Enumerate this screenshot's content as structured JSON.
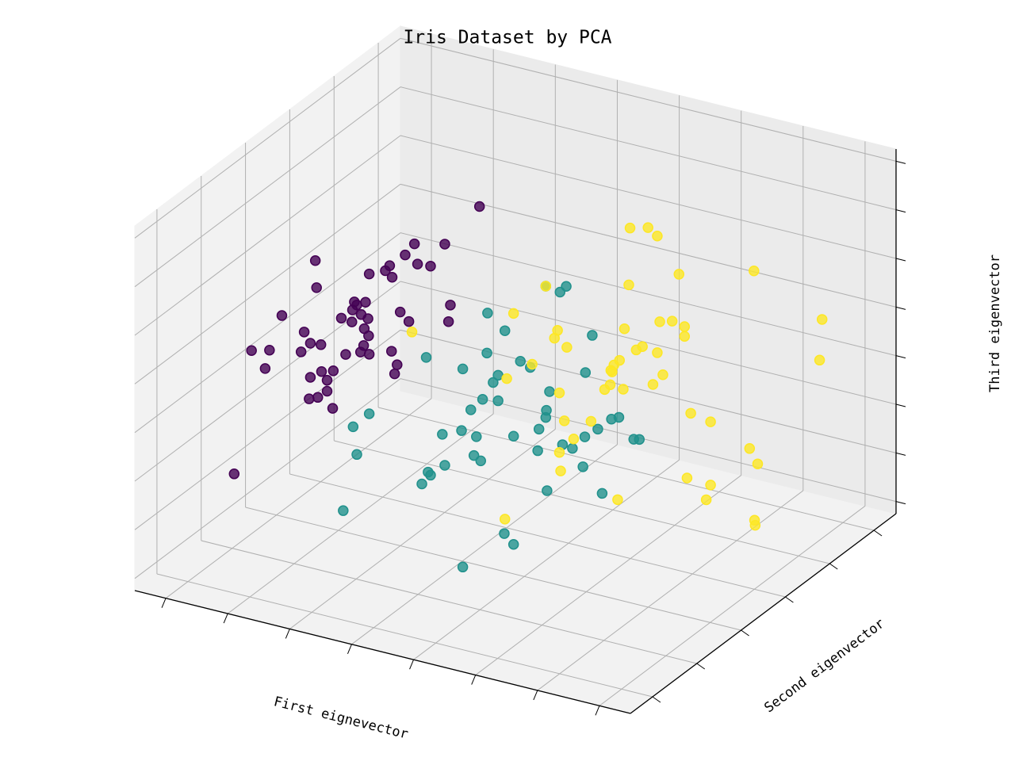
{
  "chart_data": {
    "type": "scatter3d",
    "title": "Iris Dataset by PCA",
    "x_label": "First eignevector",
    "y_label": "Second eigenvector",
    "z_label": "Third eigenvector",
    "xlim": [
      -4,
      4
    ],
    "ylim": [
      -1.5,
      1.5
    ],
    "zlim": [
      -1.5,
      1.5
    ],
    "xticks": [
      -3.5,
      -2.5,
      -1.5,
      -0.5,
      0.5,
      1.5,
      2.5,
      3.5
    ],
    "yticks": [
      -1.25,
      -0.75,
      -0.25,
      0.25,
      0.75,
      1.25
    ],
    "zticks": [
      -1.4,
      -1,
      -0.6,
      -0.2,
      0.2,
      0.6,
      1,
      1.4
    ],
    "grid": true,
    "series": [
      {
        "color": "#440154",
        "x": [
          -0.58,
          -1.63,
          -1.14,
          -3.23,
          -1.78,
          -2.03,
          -1.58,
          -1.37,
          -2.1,
          -2.36,
          -1.99,
          -3.21,
          -3.77,
          -2.42,
          -2.6,
          -1.05,
          -1.86,
          -2.63,
          -2.56,
          -2.81,
          -2.49,
          -2.38,
          -1.72,
          -1.08,
          -2.64,
          -3.41,
          -2.44,
          -2.37,
          -3.31,
          -3.14,
          -2.45,
          -4.26,
          -3.97,
          -3.46,
          -2.74,
          -2.0,
          -2.36,
          -1.91,
          -4.04,
          -3.13,
          -2.94,
          -1.95,
          -3.04,
          -3.31,
          -3.04,
          -3.19,
          -3.33,
          -2.95,
          -4.54,
          -2.5
        ],
        "y": [
          0,
          0,
          0,
          0,
          0,
          0,
          0,
          0,
          0,
          0,
          0,
          0,
          0,
          0,
          0,
          0,
          0,
          0,
          0,
          0,
          0,
          0,
          0,
          0,
          0,
          0,
          0,
          0,
          0,
          0,
          0,
          0,
          0,
          0,
          0,
          0,
          0,
          0,
          0,
          0,
          0,
          0,
          0,
          0,
          0,
          0,
          0,
          0,
          0,
          0
        ],
        "z": [
          1.27,
          0.83,
          0.89,
          0.49,
          0.72,
          0.6,
          0.67,
          0.68,
          0.55,
          0.49,
          0.51,
          0.27,
          -0.03,
          0.25,
          0.23,
          0.4,
          0.24,
          0.16,
          0.21,
          0.07,
          0.14,
          0.12,
          0.18,
          0.26,
          0.06,
          -0.12,
          0.03,
          -0.02,
          -0.2,
          -0.19,
          -0.11,
          -0.38,
          -0.34,
          -0.29,
          -0.22,
          -0.1,
          -0.17,
          -0.2,
          -0.5,
          -0.41,
          -0.38,
          -0.28,
          -0.47,
          -0.48,
          -0.56,
          -0.63,
          -0.66,
          -0.69,
          -1.43,
          -0.17
        ]
      },
      {
        "color": "#21918c",
        "x": [
          0.49,
          0.82,
          0.72,
          -0.45,
          -0.17,
          1.24,
          -0.46,
          -1.44,
          0.08,
          -0.85,
          -0.28,
          1.13,
          -0.36,
          0.24,
          0.55,
          -0.53,
          -0.28,
          -0.72,
          0.5,
          -2.36,
          0.49,
          1.55,
          1.67,
          -1.18,
          -0.87,
          -0.63,
          -0.03,
          0.38,
          1.12,
          1.33,
          1.91,
          2.0,
          -2.62,
          0.92,
          0.76,
          0.36,
          -0.56,
          -0.67,
          -1.41,
          -1.14,
          -1.51,
          -2.56,
          -1.37,
          1.09,
          0.51,
          1.4,
          -2.78,
          -0.18,
          -0.03,
          -0.85
        ],
        "y": [
          0,
          0,
          0,
          0,
          0,
          0,
          0,
          0,
          0,
          0,
          0,
          0,
          0,
          0,
          0,
          0,
          0,
          0,
          0,
          0,
          0,
          0,
          0,
          0,
          0,
          0,
          0,
          0,
          0,
          0,
          0,
          0,
          0,
          0,
          0,
          0,
          0,
          0,
          0,
          0,
          0,
          0,
          0,
          0,
          0,
          0,
          0,
          0,
          0,
          0
        ],
        "z": [
          0.75,
          0.79,
          0.73,
          0.41,
          0.3,
          0.44,
          0.08,
          -0.08,
          0.08,
          -0.1,
          -0.08,
          0.12,
          -0.15,
          0.05,
          -0.11,
          -0.31,
          -0.29,
          -0.42,
          -0.27,
          -0.66,
          -0.33,
          -0.21,
          -0.18,
          -0.68,
          -0.61,
          -0.63,
          -0.55,
          -0.44,
          -0.41,
          -0.32,
          -0.33,
          -0.32,
          -0.8,
          -0.53,
          -0.52,
          -0.62,
          -0.82,
          -0.79,
          -1.02,
          -0.93,
          -1.13,
          -1.02,
          -1.04,
          -0.66,
          -0.93,
          -0.84,
          -1.51,
          -1.37,
          -1.44,
          -1.73
        ]
      },
      {
        "color": "#fde725",
        "x": [
          1.85,
          2.14,
          2.29,
          2.64,
          3.85,
          0.49,
          1.83,
          -0.03,
          -1.67,
          0.68,
          1.76,
          2.33,
          2.53,
          2.73,
          0.63,
          0.83,
          1.95,
          2.05,
          2.73,
          2.29,
          1.68,
          1.59,
          0.27,
          4.95,
          4.91,
          1.56,
          2.38,
          -0.14,
          1.53,
          1.44,
          1.74,
          2.22,
          0.71,
          0.79,
          1.22,
          2.83,
          3.15,
          0.94,
          0.71,
          3.78,
          3.91,
          0.73,
          2.77,
          3.15,
          3.08,
          1.65,
          -0.17,
          3.86,
          3.87,
          1.54
        ],
        "y": [
          0,
          0,
          0,
          0,
          0,
          0,
          0,
          0,
          0,
          0,
          0,
          0,
          0,
          0,
          0,
          0,
          0,
          0,
          0,
          0,
          0,
          0,
          0,
          0,
          0,
          0,
          0,
          0,
          0,
          0,
          0,
          0,
          0,
          0,
          0,
          0,
          0,
          0,
          0,
          0,
          0,
          0,
          0,
          0,
          0,
          0,
          0,
          0,
          0,
          0
        ],
        "z": [
          1.4,
          1.44,
          1.39,
          1.12,
          1.3,
          0.75,
          0.93,
          0.46,
          0.1,
          0.41,
          0.56,
          0.69,
          0.72,
          0.7,
          0.34,
          0.29,
          0.41,
          0.45,
          0.62,
          0.43,
          0.29,
          0.24,
          0.08,
          1.04,
          0.7,
          0.18,
          0.26,
          -0.09,
          0.07,
          0.02,
          0.06,
          0.16,
          -0.1,
          -0.32,
          -0.27,
          0.0,
          -0.03,
          -0.45,
          -0.59,
          -0.17,
          -0.28,
          -0.74,
          -0.54,
          -0.55,
          -0.68,
          -0.86,
          -1.25,
          -0.75,
          -0.79,
          0.19
        ]
      }
    ]
  }
}
